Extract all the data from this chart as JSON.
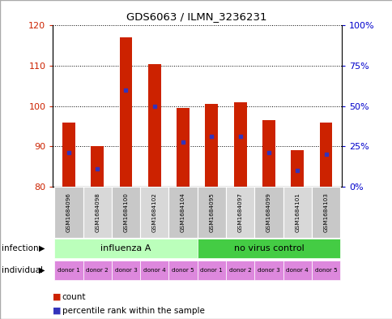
{
  "title": "GDS6063 / ILMN_3236231",
  "samples": [
    "GSM1684096",
    "GSM1684098",
    "GSM1684100",
    "GSM1684102",
    "GSM1684104",
    "GSM1684095",
    "GSM1684097",
    "GSM1684099",
    "GSM1684101",
    "GSM1684103"
  ],
  "bar_tops": [
    96,
    90,
    117,
    110.5,
    99.5,
    100.5,
    101,
    96.5,
    89,
    96
  ],
  "blue_dot_y": [
    88.5,
    84.5,
    104,
    100,
    91,
    92.5,
    92.5,
    88.5,
    84,
    88
  ],
  "ylim_left": [
    80,
    120
  ],
  "yticks_left": [
    80,
    90,
    100,
    110,
    120
  ],
  "ytick_labels_right": [
    "0%",
    "25%",
    "50%",
    "75%",
    "100%"
  ],
  "yticks_right": [
    0,
    25,
    50,
    75,
    100
  ],
  "bar_color": "#cc2200",
  "blue_color": "#3333bb",
  "infection_labels": [
    "influenza A",
    "no virus control"
  ],
  "inf_color_light": "#bbffbb",
  "inf_color_dark": "#44cc44",
  "individual_labels": [
    "donor 1",
    "donor 2",
    "donor 3",
    "donor 4",
    "donor 5",
    "donor 1",
    "donor 2",
    "donor 3",
    "donor 4",
    "donor 5"
  ],
  "individual_color": "#dd88dd",
  "left_label_color": "#cc2200",
  "right_label_color": "#0000cc",
  "sample_colors": [
    "#c8c8c8",
    "#d8d8d8",
    "#c8c8c8",
    "#d8d8d8",
    "#c8c8c8",
    "#c8c8c8",
    "#d8d8d8",
    "#c8c8c8",
    "#d8d8d8",
    "#c8c8c8"
  ]
}
